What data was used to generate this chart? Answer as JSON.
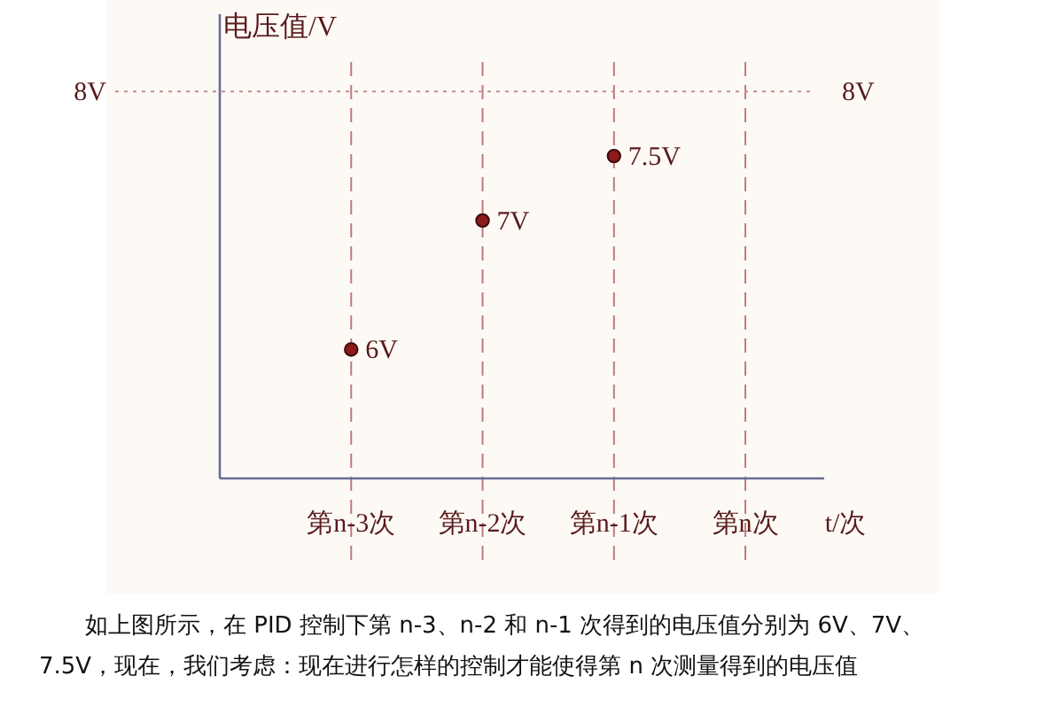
{
  "chart_data": {
    "type": "scatter",
    "ylabel": "电压值/V",
    "xlabel": "t/次",
    "categories": [
      "第n-3次",
      "第n-2次",
      "第n-1次",
      "第n次"
    ],
    "series": [
      {
        "color": "#8b1a1a",
        "values": [
          6,
          7,
          7.5,
          null
        ],
        "value_labels": [
          "6V",
          "7V",
          "7.5V",
          null
        ]
      }
    ],
    "ylim": [
      5,
      8.6
    ],
    "tick_labels": "x",
    "grid": "x",
    "marker": "circle",
    "ref_lines": [
      {
        "axis": "y",
        "value": 8,
        "label": "8V",
        "line_style": "dotted",
        "color": "#c09090"
      }
    ],
    "annotations": [
      "如上图所示，在 PID 控制下第 n-3、n-2 和 n-1 次得到的电压值分别为 6V、7V、7.5V，现在，我们考虑：现在进行怎样的控制才能使得第 n 次测量得到的电压值"
    ]
  }
}
